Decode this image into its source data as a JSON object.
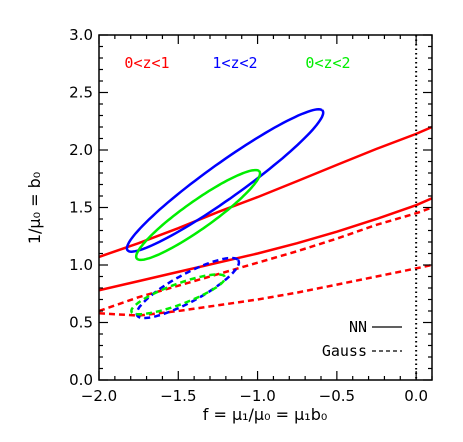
{
  "chart_data": {
    "type": "line",
    "xlabel": "f = μ₁/μ₀ = μ₁b₀",
    "ylabel": "1/μ₀ = b₀",
    "xlim": [
      -2.0,
      0.1
    ],
    "ylim": [
      0.0,
      3.0
    ],
    "x_ticks": [
      -2.0,
      -1.5,
      -1.0,
      -0.5,
      0.0
    ],
    "x_tick_labels": [
      "−2.0",
      "−1.5",
      "−1.0",
      "−0.5",
      "0.0"
    ],
    "y_ticks": [
      0.0,
      0.5,
      1.0,
      1.5,
      2.0,
      2.5,
      3.0
    ],
    "y_tick_labels": [
      "0.0",
      "0.5",
      "1.0",
      "1.5",
      "2.0",
      "2.5",
      "3.0"
    ],
    "grid": false,
    "vertical_reference_line": {
      "x": 0.0,
      "style": "dotted",
      "color": "#000000"
    },
    "redshift_labels": [
      {
        "text": "0<z<1",
        "color": "#ff0000"
      },
      {
        "text": "1<z<2",
        "color": "#0000ff"
      },
      {
        "text": "0<z<2",
        "color": "#00ee00"
      }
    ],
    "legend": {
      "placement": "bottom-right",
      "entries": [
        {
          "label": "NN",
          "style": "solid"
        },
        {
          "label": "Gauss",
          "style": "dashed"
        }
      ]
    },
    "series": [
      {
        "type": "band_line",
        "style": "solid",
        "color": "#ff0000",
        "x": [
          -2.0,
          -1.75,
          -1.5,
          -1.25,
          -1.0,
          -0.75,
          -0.5,
          -0.25,
          0.0,
          0.1
        ],
        "y": [
          1.07,
          1.19,
          1.32,
          1.46,
          1.59,
          1.73,
          1.87,
          2.01,
          2.14,
          2.2
        ]
      },
      {
        "type": "band_line",
        "style": "solid",
        "color": "#ff0000",
        "x": [
          -2.0,
          -1.75,
          -1.5,
          -1.25,
          -1.0,
          -0.75,
          -0.5,
          -0.25,
          0.0,
          0.1
        ],
        "y": [
          0.78,
          0.86,
          0.94,
          1.02,
          1.1,
          1.19,
          1.29,
          1.4,
          1.52,
          1.58
        ]
      },
      {
        "type": "band_line",
        "style": "dashed",
        "color": "#ff0000",
        "x": [
          -2.0,
          -1.75,
          -1.5,
          -1.25,
          -1.0,
          -0.75,
          -0.5,
          -0.25,
          0.0,
          0.1
        ],
        "y": [
          0.6,
          0.72,
          0.82,
          0.92,
          1.02,
          1.12,
          1.23,
          1.35,
          1.45,
          1.5
        ]
      },
      {
        "type": "band_line",
        "style": "dashed",
        "color": "#ff0000",
        "x": [
          -2.0,
          -1.75,
          -1.5,
          -1.25,
          -1.0,
          -0.75,
          -0.5,
          -0.25,
          0.0,
          0.1
        ],
        "y": [
          0.58,
          0.56,
          0.6,
          0.65,
          0.7,
          0.76,
          0.83,
          0.9,
          0.97,
          1.0
        ]
      },
      {
        "type": "ellipse",
        "style": "solid",
        "color": "#0000ff",
        "center": [
          -1.205,
          1.735
        ],
        "semi_major": 0.865,
        "semi_minor": 0.134,
        "angle_deg": 45
      },
      {
        "type": "ellipse",
        "style": "solid",
        "color": "#00ee00",
        "center": [
          -1.375,
          1.435
        ],
        "semi_major": 0.542,
        "semi_minor": 0.106,
        "angle_deg": 45
      },
      {
        "type": "ellipse",
        "style": "dashed",
        "color": "#0000ff",
        "center": [
          -1.44,
          0.8
        ],
        "semi_major": 0.4,
        "semi_minor": 0.11,
        "angle_deg": 38
      },
      {
        "type": "ellipse",
        "style": "dashed",
        "color": "#00ee00",
        "center": [
          -1.5,
          0.745
        ],
        "semi_major": 0.332,
        "semi_minor": 0.085,
        "angle_deg": 28
      }
    ]
  }
}
